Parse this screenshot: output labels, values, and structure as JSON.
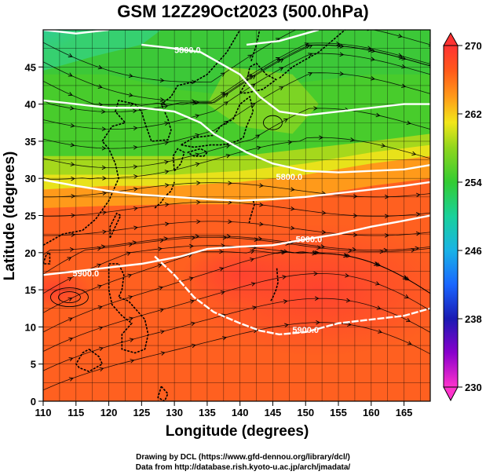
{
  "title": "GSM 12Z29Oct2023 (500.0hPa)",
  "credits": {
    "line1": "Drawing by DCL (https://www.gfd-dennou.org/library/dcl/)",
    "line2": "Data from http://database.rish.kyoto-u.ac.jp/arch/jmadata/"
  },
  "chart_data": {
    "type": "heatmap",
    "title": "GSM 12Z29Oct2023 (500.0hPa)",
    "xlabel": "Longitude (degrees)",
    "ylabel": "Latitude (degrees)",
    "xlim": [
      110,
      169
    ],
    "ylim": [
      0,
      50
    ],
    "x_ticks": [
      "110",
      "115",
      "120",
      "125",
      "130",
      "135",
      "140",
      "145",
      "150",
      "155",
      "160",
      "165"
    ],
    "y_ticks": [
      "0",
      "5",
      "10",
      "15",
      "20",
      "25",
      "30",
      "35",
      "40",
      "45"
    ],
    "grid": true,
    "colorbar": {
      "min": 230,
      "max": 270,
      "ticks": [
        "230",
        "238",
        "246",
        "254",
        "262",
        "270"
      ],
      "stops": [
        {
          "value": 230,
          "color": "#ff33cc"
        },
        {
          "value": 234,
          "color": "#8a00cc"
        },
        {
          "value": 238,
          "color": "#1a1ab3"
        },
        {
          "value": 242,
          "color": "#1a66ff"
        },
        {
          "value": 246,
          "color": "#19b3e6"
        },
        {
          "value": 250,
          "color": "#19d19b"
        },
        {
          "value": 254,
          "color": "#33cc33"
        },
        {
          "value": 258,
          "color": "#8fd61e"
        },
        {
          "value": 261,
          "color": "#f2e61a"
        },
        {
          "value": 264,
          "color": "#ff9a1a"
        },
        {
          "value": 267,
          "color": "#ff5a1a"
        },
        {
          "value": 270,
          "color": "#ff3333"
        }
      ]
    },
    "contour_labels": [
      {
        "text": "5800.0",
        "lon": 132,
        "lat": 46.9
      },
      {
        "text": "5800.0",
        "lon": 147.5,
        "lat": 29.8
      },
      {
        "text": "5900.0",
        "lon": 150.5,
        "lat": 21.4
      },
      {
        "text": "5900.0",
        "lon": 116.5,
        "lat": 16.8
      },
      {
        "text": "5900.0",
        "lon": 150,
        "lat": 9.2
      }
    ]
  }
}
